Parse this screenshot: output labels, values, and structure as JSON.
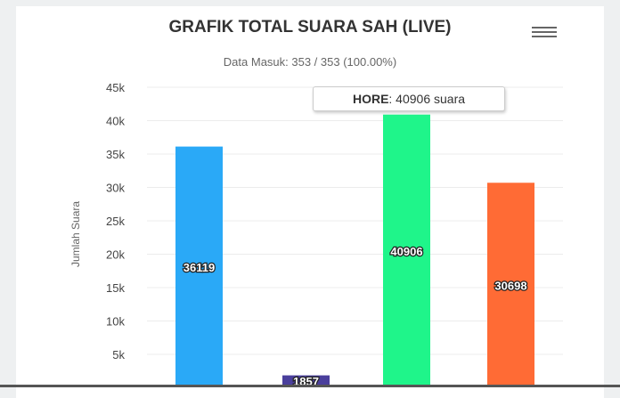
{
  "chart_data": {
    "type": "bar",
    "title": "GRAFIK TOTAL SUARA SAH (LIVE)",
    "subtitle": "Data Masuk: 353 / 353 (100.00%)",
    "ylabel": "Jumlah Suara",
    "ylim": [
      0,
      45000
    ],
    "yticks": [
      "5k",
      "10k",
      "15k",
      "20k",
      "25k",
      "30k",
      "35k",
      "40k",
      "45k"
    ],
    "grid": true,
    "values": [
      36119,
      1857,
      40906,
      30698
    ],
    "data_labels": [
      "36119",
      "1857",
      "40906",
      "30698"
    ],
    "colors": [
      "#2aa9f7",
      "#4a3f9c",
      "#1ff58a",
      "#ff6b35"
    ],
    "tooltip": {
      "name": "HORE",
      "text": ": 40906 suara"
    }
  },
  "menu_icon": "hamburger-menu-icon",
  "watermark": "M S Media Su"
}
